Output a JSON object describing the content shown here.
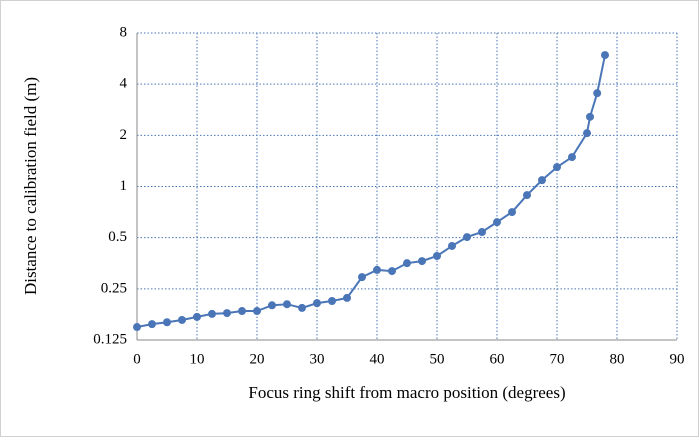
{
  "chart_data": {
    "type": "line",
    "x_label": "Focus ring shift from macro position (degrees)",
    "y_label": "Distance to calibration field (m)",
    "x": [
      0,
      2.5,
      5,
      7.5,
      10,
      12.5,
      15,
      17.5,
      20,
      22.5,
      25,
      27.5,
      30,
      32.5,
      35,
      37.5,
      40,
      42.5,
      45,
      47.5,
      50,
      52.5,
      55,
      57.5,
      60,
      62.5,
      65,
      67.5,
      70,
      72.5,
      75,
      75.5,
      76.7,
      78
    ],
    "series": [
      {
        "name": "Distance",
        "color": "#4a76b8",
        "values": [
          0.149,
          0.155,
          0.159,
          0.164,
          0.171,
          0.178,
          0.18,
          0.185,
          0.185,
          0.2,
          0.203,
          0.193,
          0.206,
          0.212,
          0.221,
          0.293,
          0.323,
          0.318,
          0.354,
          0.364,
          0.39,
          0.447,
          0.504,
          0.54,
          0.617,
          0.707,
          0.89,
          1.09,
          1.3,
          1.49,
          2.06,
          2.57,
          3.54,
          5.93
        ]
      }
    ],
    "xlim": [
      0,
      90
    ],
    "xticks": [
      0,
      10,
      20,
      30,
      40,
      50,
      60,
      70,
      80,
      90
    ],
    "ylim": [
      0.125,
      8
    ],
    "yticks": [
      0.125,
      0.25,
      0.5,
      1,
      2,
      4,
      8
    ],
    "ylog": true,
    "log_base": 2,
    "grid": true
  }
}
